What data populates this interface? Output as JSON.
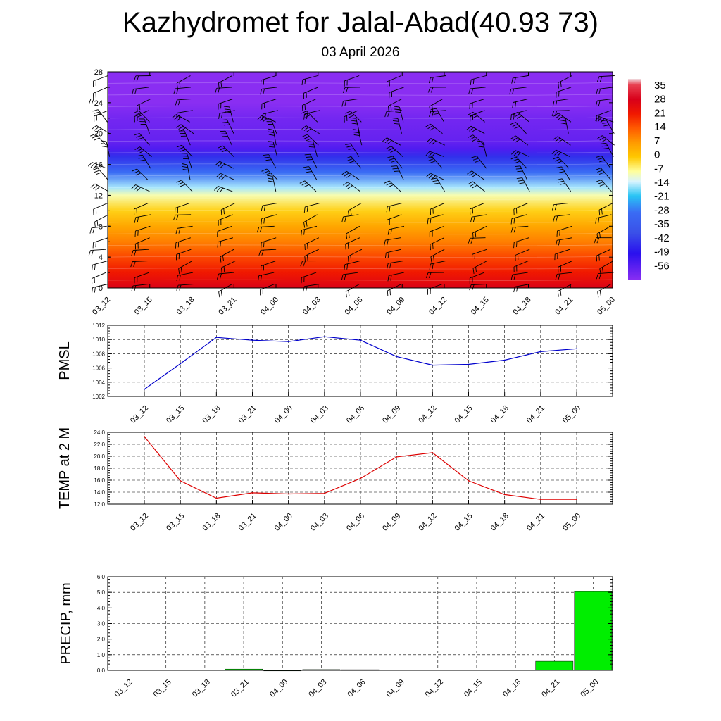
{
  "title": "Kazhydromet for Jalal-Abad(40.93 73)",
  "subtitle": "03 April 2026",
  "chart_data": [
    {
      "id": "cross_section",
      "type": "heatmap",
      "title": "Kazhydromet for Jalal-Abad(40.93 73)",
      "subtitle": "03 April 2026",
      "x": [
        "03_12",
        "03_15",
        "03_18",
        "03_21",
        "04_00",
        "04_03",
        "04_06",
        "04_09",
        "04_12",
        "04_15",
        "04_18",
        "04_21",
        "05_00"
      ],
      "yticks": [
        0,
        4,
        8,
        12,
        16,
        20,
        24,
        28
      ],
      "ylim": [
        0,
        28
      ],
      "colorbar_labels": [
        "35",
        "28",
        "21",
        "14",
        "7",
        "0",
        "-7",
        "-14",
        "-21",
        "-28",
        "-35",
        "-42",
        "-49",
        "-56"
      ],
      "colorbar_range": [
        -63,
        35
      ],
      "colorbar_stops": [
        {
          "value": 35,
          "color": "#f0d8dc"
        },
        {
          "value": 32,
          "color": "#e84050"
        },
        {
          "value": 25,
          "color": "#d8001a"
        },
        {
          "value": 18,
          "color": "#f01800"
        },
        {
          "value": 11,
          "color": "#ff5a00"
        },
        {
          "value": 4,
          "color": "#ff9a00"
        },
        {
          "value": -3,
          "color": "#ffc800"
        },
        {
          "value": -10,
          "color": "#ffff9c"
        },
        {
          "value": -15,
          "color": "#d8f4ff"
        },
        {
          "value": -22,
          "color": "#28c4f4"
        },
        {
          "value": -30,
          "color": "#3a6cf4"
        },
        {
          "value": -40,
          "color": "#3a50e8"
        },
        {
          "value": -50,
          "color": "#2a10ee"
        },
        {
          "value": -63,
          "color": "#8a2ef2"
        }
      ],
      "temperature_profile": [
        {
          "z": 0,
          "t": 24
        },
        {
          "z": 2,
          "t": 18
        },
        {
          "z": 4,
          "t": 13
        },
        {
          "z": 6,
          "t": 7
        },
        {
          "z": 8,
          "t": 2
        },
        {
          "z": 10,
          "t": -4
        },
        {
          "z": 12,
          "t": -11
        },
        {
          "z": 13,
          "t": -17
        },
        {
          "z": 15,
          "t": -30
        },
        {
          "z": 17,
          "t": -45
        },
        {
          "z": 18,
          "t": -55
        },
        {
          "z": 19,
          "t": -58
        },
        {
          "z": 22,
          "t": -60
        },
        {
          "z": 24,
          "t": -63
        },
        {
          "z": 28,
          "t": -63
        }
      ],
      "wind_barb_levels": [
        0.5,
        2,
        3.5,
        5,
        6.5,
        8,
        9.5,
        11,
        12.5,
        14,
        15.5,
        17,
        18.5,
        20,
        21.5,
        23,
        24.5,
        26,
        27.5
      ],
      "colors": {
        "barb": "#000000"
      }
    },
    {
      "id": "pmsl",
      "type": "line",
      "ylabel": "PMSL",
      "categories": [
        "03_12",
        "03_15",
        "03_18",
        "03_21",
        "04_00",
        "04_03",
        "04_06",
        "04_09",
        "04_12",
        "04_15",
        "04_18",
        "04_21",
        "05_00"
      ],
      "values": [
        1003.0,
        1006.6,
        1010.3,
        1009.9,
        1009.7,
        1010.4,
        1009.9,
        1007.6,
        1006.4,
        1006.5,
        1007.1,
        1008.3,
        1008.7
      ],
      "ylim": [
        1002,
        1012
      ],
      "yticks": [
        "1002",
        "1004",
        "1006",
        "1008",
        "1010",
        "1012"
      ],
      "color": "#0000cc"
    },
    {
      "id": "temp2m",
      "type": "line",
      "ylabel": "TEMP at 2 M",
      "categories": [
        "03_12",
        "03_15",
        "03_18",
        "03_21",
        "04_00",
        "04_03",
        "04_06",
        "04_09",
        "04_12",
        "04_15",
        "04_18",
        "04_21",
        "05_00"
      ],
      "values": [
        23.3,
        15.9,
        13.0,
        13.9,
        13.7,
        13.8,
        16.3,
        19.9,
        20.6,
        15.9,
        13.6,
        12.8,
        12.8
      ],
      "ylim": [
        12,
        24
      ],
      "yticks": [
        "12.0",
        "14.0",
        "16.0",
        "18.0",
        "20.0",
        "22.0",
        "24.0"
      ],
      "color": "#dd0000"
    },
    {
      "id": "precip",
      "type": "bar",
      "ylabel": "PRECIP, mm",
      "categories": [
        "03_12",
        "03_15",
        "03_18",
        "03_21",
        "04_00",
        "04_03",
        "04_06",
        "04_09",
        "04_12",
        "04_15",
        "04_18",
        "04_21",
        "05_00"
      ],
      "values": [
        0.0,
        0.0,
        0.0,
        0.08,
        0.02,
        0.05,
        0.04,
        0.0,
        0.0,
        0.0,
        0.0,
        0.58,
        5.05
      ],
      "ylim": [
        0,
        6
      ],
      "yticks": [
        "0.0",
        "1.0",
        "2.0",
        "3.0",
        "4.0",
        "5.0",
        "6.0"
      ],
      "color": "#00ee00"
    }
  ]
}
